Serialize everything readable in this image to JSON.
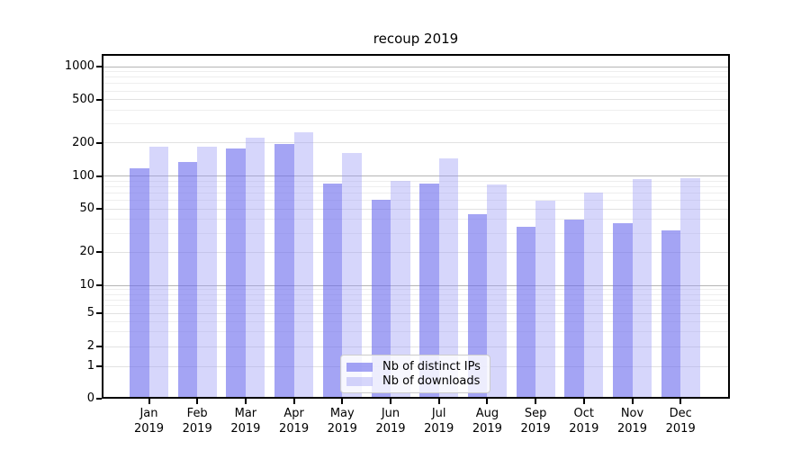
{
  "chart_data": {
    "type": "bar",
    "title": "recoup 2019",
    "categories": [
      "Jan",
      "Feb",
      "Mar",
      "Apr",
      "May",
      "Jun",
      "Jul",
      "Aug",
      "Sep",
      "Oct",
      "Nov",
      "Dec"
    ],
    "category_year": "2019",
    "series": [
      {
        "name": "Nb of distinct IPs",
        "color": "#a9a9f3",
        "values": [
          118,
          135,
          177,
          198,
          86,
          61,
          86,
          45,
          34,
          40,
          37,
          32
        ]
      },
      {
        "name": "Nb of downloads",
        "color": "#d9d9f9",
        "values": [
          185,
          185,
          225,
          250,
          163,
          91,
          146,
          84,
          60,
          70,
          93,
          95
        ]
      }
    ],
    "xlabel": "",
    "ylabel": "",
    "yscale": "log-like with 0 baseline",
    "yticks": [
      0,
      1,
      2,
      5,
      10,
      20,
      50,
      100,
      200,
      500,
      1000
    ],
    "ylim": [
      0,
      1000
    ],
    "grid": "horizontal, major and minor",
    "legend_position": "lower center"
  }
}
